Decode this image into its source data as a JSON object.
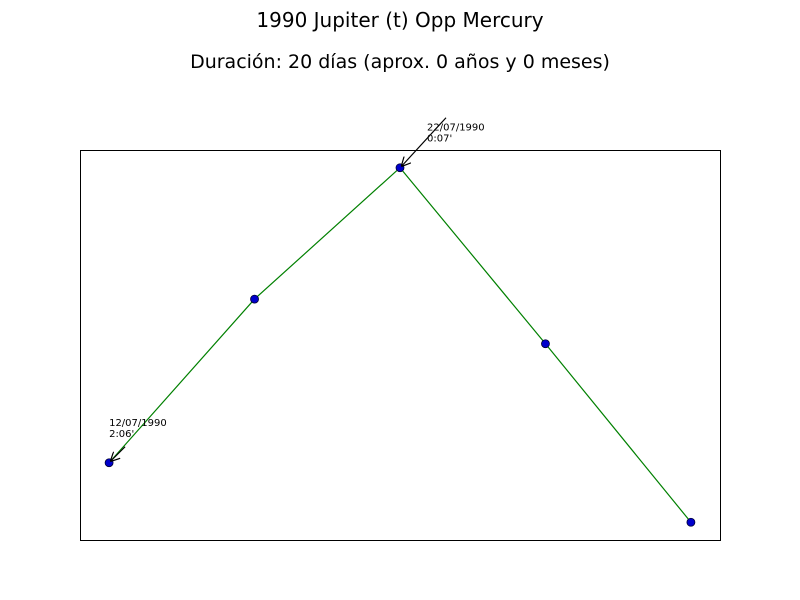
{
  "chart_data": {
    "type": "line",
    "title": "1990 Jupiter (t) Opp Mercury",
    "subtitle": "Duración: 20 días (aprox. 0 años y 0 meses)",
    "xlabel": "",
    "ylabel": "",
    "x": [
      0,
      5,
      10,
      15,
      20
    ],
    "y": [
      2.1,
      1.0,
      0.117,
      1.3,
      2.5
    ],
    "ylim_inverted": true,
    "grid": false,
    "line_color": "#008000",
    "marker_color": "#0000cc",
    "annotations": [
      {
        "point_index": 0,
        "date": "12/07/1990",
        "value": "2:06'"
      },
      {
        "point_index": 2,
        "date": "22/07/1990",
        "value": "0:07'"
      }
    ]
  }
}
